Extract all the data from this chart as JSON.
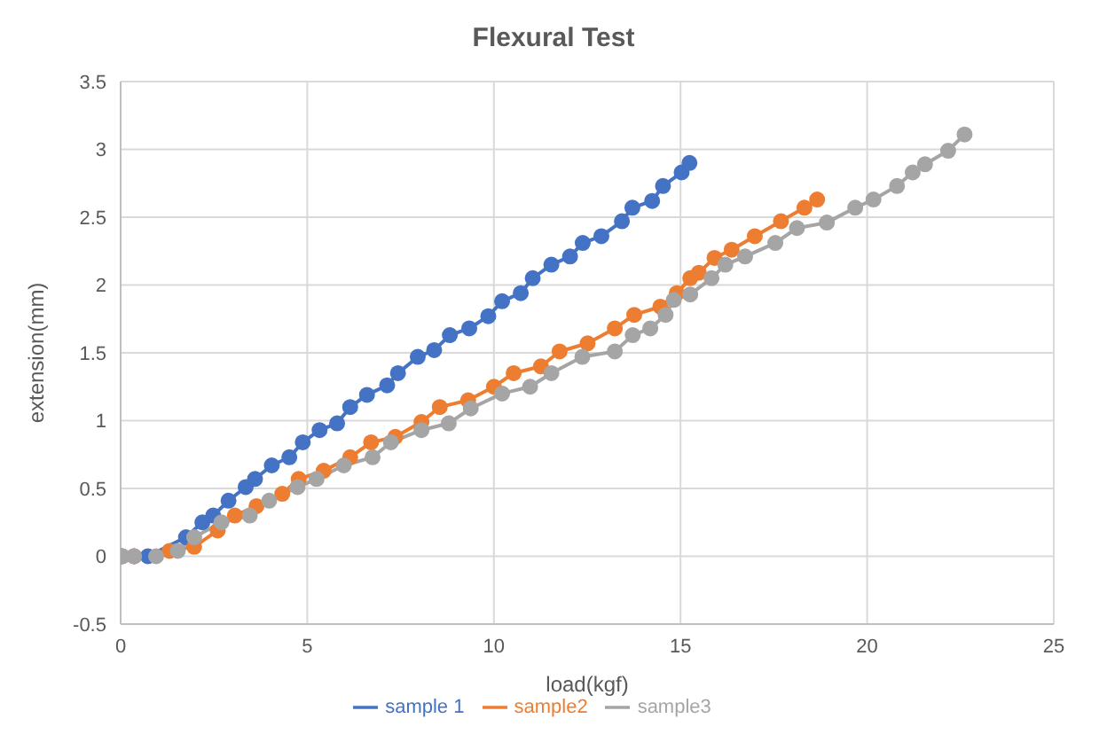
{
  "chart_data": {
    "type": "line",
    "title": "Flexural Test",
    "xlabel": "load(kgf)",
    "ylabel": "extension(mm)",
    "xlim": [
      0,
      25
    ],
    "xticks": [
      0,
      5,
      10,
      15,
      20,
      25
    ],
    "ylim": [
      -0.5,
      3.5
    ],
    "yticks": [
      -0.5,
      0,
      0.5,
      1,
      1.5,
      2,
      2.5,
      3,
      3.5
    ],
    "grid": true,
    "legend": "bottom",
    "marker": "circle",
    "line_style": "solid",
    "series": [
      {
        "name": "sample 1",
        "color": "#4472c4",
        "x": [
          0.04,
          0.36,
          0.73,
          1.75,
          2.19,
          2.48,
          2.89,
          3.35,
          3.6,
          4.05,
          4.52,
          4.88,
          5.33,
          5.8,
          6.15,
          6.6,
          7.14,
          7.43,
          7.96,
          8.4,
          8.82,
          9.34,
          9.85,
          10.22,
          10.72,
          11.04,
          11.54,
          12.04,
          12.38,
          12.88,
          13.43,
          13.71,
          14.24,
          14.53,
          15.03,
          15.24
        ],
        "values": [
          0,
          0,
          0,
          0.14,
          0.25,
          0.3,
          0.41,
          0.51,
          0.57,
          0.67,
          0.73,
          0.84,
          0.93,
          0.98,
          1.1,
          1.19,
          1.26,
          1.35,
          1.47,
          1.52,
          1.63,
          1.68,
          1.77,
          1.88,
          1.94,
          2.05,
          2.15,
          2.21,
          2.31,
          2.36,
          2.47,
          2.57,
          2.62,
          2.73,
          2.83,
          2.9
        ]
      },
      {
        "name": "sample2",
        "color": "#ed7d31",
        "x": [
          0.04,
          0.36,
          1.31,
          1.97,
          2.6,
          3.06,
          3.64,
          4.33,
          4.77,
          5.44,
          6.15,
          6.71,
          7.36,
          8.06,
          8.55,
          9.31,
          10.0,
          10.53,
          11.26,
          11.76,
          12.51,
          13.24,
          13.76,
          14.46,
          14.9,
          15.26,
          15.49,
          15.91,
          16.37,
          16.99,
          17.69,
          18.32,
          18.66
        ],
        "values": [
          0,
          0,
          0.04,
          0.07,
          0.19,
          0.3,
          0.37,
          0.46,
          0.57,
          0.63,
          0.73,
          0.84,
          0.88,
          0.99,
          1.1,
          1.15,
          1.25,
          1.35,
          1.4,
          1.51,
          1.57,
          1.68,
          1.78,
          1.84,
          1.94,
          2.05,
          2.09,
          2.2,
          2.26,
          2.36,
          2.47,
          2.57,
          2.63
        ]
      },
      {
        "name": "sample3",
        "color": "#a5a5a5",
        "x": [
          0.04,
          0.36,
          0.95,
          1.53,
          1.97,
          2.7,
          3.46,
          3.98,
          4.74,
          5.25,
          5.98,
          6.75,
          7.24,
          8.06,
          8.79,
          9.38,
          10.22,
          10.97,
          11.54,
          12.37,
          13.24,
          13.72,
          14.19,
          14.6,
          14.82,
          15.26,
          15.83,
          16.2,
          16.73,
          17.54,
          18.12,
          18.92,
          19.68,
          20.17,
          20.8,
          21.22,
          21.55,
          22.17,
          22.61
        ],
        "values": [
          0,
          0,
          0,
          0.04,
          0.14,
          0.25,
          0.3,
          0.41,
          0.51,
          0.57,
          0.67,
          0.73,
          0.84,
          0.93,
          0.98,
          1.09,
          1.2,
          1.25,
          1.35,
          1.47,
          1.51,
          1.63,
          1.68,
          1.78,
          1.89,
          1.93,
          2.05,
          2.15,
          2.21,
          2.31,
          2.42,
          2.46,
          2.57,
          2.63,
          2.73,
          2.83,
          2.89,
          2.99,
          3.11
        ]
      }
    ]
  }
}
